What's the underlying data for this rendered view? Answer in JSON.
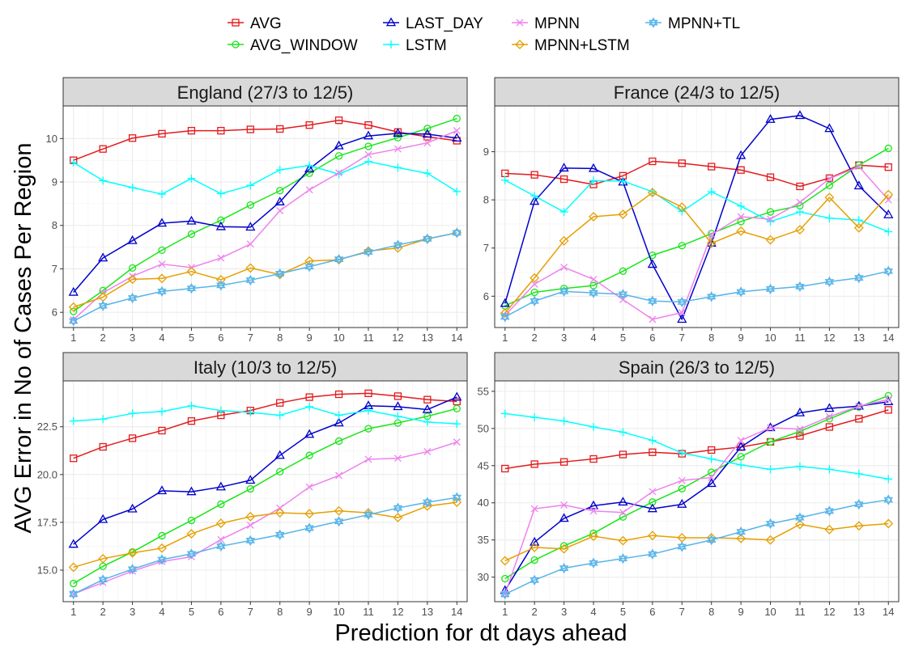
{
  "figure": {
    "xlabel": "Prediction for dt days ahead",
    "ylabel": "AVG Error in No of Cases Per Region"
  },
  "chart_data": [
    {
      "type": "line",
      "title": "England (27/3 to 12/5)",
      "x": [
        1,
        2,
        3,
        4,
        5,
        6,
        7,
        8,
        9,
        10,
        11,
        12,
        13,
        14
      ],
      "xlim": [
        0.65,
        14.35
      ],
      "ylim": [
        5.65,
        10.75
      ],
      "yticks": [
        6,
        7,
        8,
        9,
        10
      ],
      "ytick_labels": [
        "6",
        "7",
        "8",
        "9",
        "10"
      ],
      "series": [
        {
          "name": "AVG",
          "values": [
            9.5,
            9.76,
            10.01,
            10.11,
            10.18,
            10.18,
            10.21,
            10.22,
            10.31,
            10.42,
            10.31,
            10.15,
            10.04,
            9.95
          ]
        },
        {
          "name": "AVG_WINDOW",
          "values": [
            6.02,
            6.5,
            7.02,
            7.43,
            7.8,
            8.12,
            8.47,
            8.8,
            9.2,
            9.6,
            9.82,
            10.02,
            10.23,
            10.46
          ]
        },
        {
          "name": "LAST_DAY",
          "values": [
            6.46,
            7.25,
            7.65,
            8.05,
            8.1,
            7.97,
            7.96,
            8.54,
            9.3,
            9.83,
            10.06,
            10.12,
            10.1,
            10.01
          ]
        },
        {
          "name": "LSTM",
          "values": [
            9.45,
            9.03,
            8.87,
            8.72,
            9.08,
            8.73,
            8.92,
            9.28,
            9.38,
            9.18,
            9.47,
            9.33,
            9.2,
            8.78
          ]
        },
        {
          "name": "MPNN",
          "values": [
            5.83,
            6.45,
            6.83,
            7.11,
            7.03,
            7.25,
            7.57,
            8.34,
            8.82,
            9.21,
            9.63,
            9.76,
            9.9,
            10.18
          ]
        },
        {
          "name": "MPNN+LSTM",
          "values": [
            6.12,
            6.35,
            6.76,
            6.78,
            6.94,
            6.75,
            7.02,
            6.87,
            7.18,
            7.21,
            7.41,
            7.48,
            7.69,
            7.83
          ]
        },
        {
          "name": "MPNN+TL",
          "values": [
            5.8,
            6.15,
            6.33,
            6.48,
            6.55,
            6.62,
            6.74,
            6.89,
            7.05,
            7.22,
            7.39,
            7.55,
            7.69,
            7.83
          ]
        }
      ]
    },
    {
      "type": "line",
      "title": "France (24/3 to 12/5)",
      "x": [
        1,
        2,
        3,
        4,
        5,
        6,
        7,
        8,
        9,
        10,
        11,
        12,
        13,
        14
      ],
      "xlim": [
        0.65,
        14.35
      ],
      "ylim": [
        5.35,
        9.95
      ],
      "yticks": [
        6,
        7,
        8,
        9
      ],
      "ytick_labels": [
        "6",
        "7",
        "8",
        "9"
      ],
      "series": [
        {
          "name": "AVG",
          "values": [
            8.55,
            8.52,
            8.43,
            8.32,
            8.5,
            8.8,
            8.76,
            8.69,
            8.62,
            8.47,
            8.28,
            8.45,
            8.72,
            8.68
          ]
        },
        {
          "name": "AVG_WINDOW",
          "values": [
            5.8,
            6.08,
            6.16,
            6.22,
            6.52,
            6.85,
            7.05,
            7.3,
            7.55,
            7.75,
            7.88,
            8.3,
            8.72,
            9.07
          ]
        },
        {
          "name": "LAST_DAY",
          "values": [
            5.85,
            7.97,
            8.66,
            8.65,
            8.37,
            6.66,
            5.52,
            7.1,
            8.92,
            9.67,
            9.75,
            9.48,
            8.29,
            7.69
          ]
        },
        {
          "name": "LSTM",
          "values": [
            8.41,
            8.08,
            7.75,
            8.4,
            8.39,
            8.17,
            7.76,
            8.17,
            7.87,
            7.55,
            7.75,
            7.62,
            7.58,
            7.34
          ]
        },
        {
          "name": "MPNN",
          "values": [
            5.6,
            6.25,
            6.6,
            6.35,
            5.93,
            5.52,
            5.66,
            7.28,
            7.65,
            7.6,
            7.95,
            8.44,
            8.69,
            8.0
          ]
        },
        {
          "name": "MPNN+LSTM",
          "values": [
            5.65,
            6.38,
            7.15,
            7.65,
            7.7,
            8.15,
            7.85,
            7.1,
            7.35,
            7.17,
            7.38,
            8.05,
            7.42,
            8.11
          ]
        },
        {
          "name": "MPNN+TL",
          "values": [
            5.57,
            5.9,
            6.1,
            6.07,
            6.04,
            5.9,
            5.88,
            5.99,
            6.09,
            6.15,
            6.2,
            6.3,
            6.38,
            6.52
          ]
        }
      ]
    },
    {
      "type": "line",
      "title": "Italy (10/3 to 12/5)",
      "x": [
        1,
        2,
        3,
        4,
        5,
        6,
        7,
        8,
        9,
        10,
        11,
        12,
        13,
        14
      ],
      "xlim": [
        0.65,
        14.35
      ],
      "ylim": [
        13.35,
        24.9
      ],
      "yticks": [
        15,
        17.5,
        20,
        22.5
      ],
      "ytick_labels": [
        "15.0",
        "17.5",
        "20.0",
        "22.5"
      ],
      "series": [
        {
          "name": "AVG",
          "values": [
            20.85,
            21.45,
            21.9,
            22.3,
            22.8,
            23.1,
            23.35,
            23.75,
            24.05,
            24.2,
            24.25,
            24.1,
            23.92,
            23.82
          ]
        },
        {
          "name": "AVG_WINDOW",
          "values": [
            14.3,
            15.2,
            15.95,
            16.8,
            17.6,
            18.45,
            19.25,
            20.15,
            21.0,
            21.75,
            22.4,
            22.7,
            23.05,
            23.45
          ]
        },
        {
          "name": "LAST_DAY",
          "values": [
            16.35,
            17.65,
            18.2,
            19.15,
            19.1,
            19.35,
            19.7,
            21.0,
            22.1,
            22.7,
            23.6,
            23.55,
            23.4,
            24.05
          ]
        },
        {
          "name": "LSTM",
          "values": [
            22.8,
            22.9,
            23.2,
            23.3,
            23.6,
            23.35,
            23.25,
            23.1,
            23.55,
            23.1,
            23.35,
            23.05,
            22.75,
            22.65
          ]
        },
        {
          "name": "MPNN",
          "values": [
            13.75,
            14.35,
            14.95,
            15.45,
            15.7,
            16.6,
            17.35,
            18.25,
            19.35,
            19.95,
            20.8,
            20.85,
            21.2,
            21.7
          ]
        },
        {
          "name": "MPNN+LSTM",
          "values": [
            15.15,
            15.6,
            15.9,
            16.15,
            16.9,
            17.45,
            17.8,
            18.0,
            17.95,
            18.1,
            18.0,
            17.75,
            18.35,
            18.55
          ]
        },
        {
          "name": "MPNN+TL",
          "values": [
            13.75,
            14.5,
            15.05,
            15.55,
            15.85,
            16.25,
            16.55,
            16.85,
            17.2,
            17.55,
            17.9,
            18.25,
            18.55,
            18.8
          ]
        }
      ]
    },
    {
      "type": "line",
      "title": "Spain (26/3 to 12/5)",
      "x": [
        1,
        2,
        3,
        4,
        5,
        6,
        7,
        8,
        9,
        10,
        11,
        12,
        13,
        14
      ],
      "xlim": [
        0.65,
        14.35
      ],
      "ylim": [
        26.7,
        56.4
      ],
      "yticks": [
        30,
        35,
        40,
        45,
        50,
        55
      ],
      "ytick_labels": [
        "30",
        "35",
        "40",
        "45",
        "50",
        "55"
      ],
      "series": [
        {
          "name": "AVG",
          "values": [
            44.6,
            45.2,
            45.5,
            45.9,
            46.5,
            46.8,
            46.6,
            47.1,
            47.5,
            48.2,
            49.0,
            50.2,
            51.3,
            52.5
          ]
        },
        {
          "name": "AVG_WINDOW",
          "values": [
            29.8,
            32.3,
            34.2,
            35.9,
            38.1,
            40.1,
            41.9,
            44.1,
            46.2,
            48.2,
            49.6,
            51.3,
            52.9,
            54.4
          ]
        },
        {
          "name": "LAST_DAY",
          "values": [
            28.2,
            34.7,
            37.9,
            39.6,
            40.1,
            39.2,
            39.8,
            42.6,
            47.5,
            50.1,
            52.1,
            52.7,
            53.0,
            53.6
          ]
        },
        {
          "name": "LSTM",
          "values": [
            52.0,
            51.5,
            51.0,
            50.2,
            49.5,
            48.4,
            46.7,
            45.9,
            45.1,
            44.5,
            44.9,
            44.5,
            43.9,
            43.2
          ]
        },
        {
          "name": "MPNN",
          "values": [
            27.7,
            39.2,
            39.7,
            38.9,
            38.7,
            41.5,
            43.0,
            43.4,
            48.4,
            50.1,
            49.9,
            51.6,
            53.0,
            53.9
          ]
        },
        {
          "name": "MPNN+LSTM",
          "values": [
            32.2,
            34.0,
            33.8,
            35.5,
            34.9,
            35.6,
            35.3,
            35.3,
            35.2,
            35.0,
            37.1,
            36.4,
            36.9,
            37.2
          ]
        },
        {
          "name": "MPNN+TL",
          "values": [
            27.7,
            29.6,
            31.2,
            31.9,
            32.5,
            33.1,
            34.1,
            35.0,
            36.1,
            37.2,
            38.0,
            38.9,
            39.8,
            40.4
          ]
        }
      ]
    }
  ],
  "legend": [
    {
      "name": "AVG",
      "color": "#e41a1c",
      "shape": "square"
    },
    {
      "name": "AVG_WINDOW",
      "color": "#19e619",
      "shape": "circle"
    },
    {
      "name": "LAST_DAY",
      "color": "#0000cc",
      "shape": "triangle"
    },
    {
      "name": "LSTM",
      "color": "#00ffff",
      "shape": "plus"
    },
    {
      "name": "MPNN",
      "color": "#ee82ee",
      "shape": "cross"
    },
    {
      "name": "MPNN+LSTM",
      "color": "#e69f00",
      "shape": "diamond"
    },
    {
      "name": "MPNN+TL",
      "color": "#56b4e9",
      "shape": "star"
    }
  ]
}
